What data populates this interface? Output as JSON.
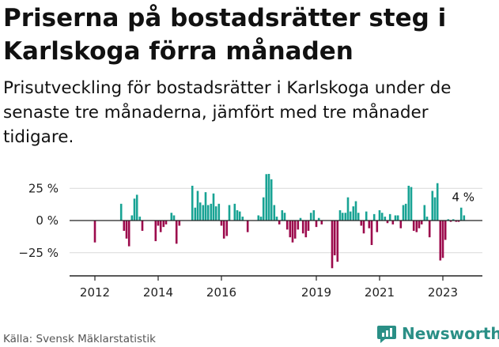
{
  "title": "Priserna på bostadsrätter steg i Karlskoga förra månaden",
  "subtitle": "Prisutveckling för bostadsrätter i Karlskoga under de senaste tre månaderna, jämfört med tre månader tidigare.",
  "source": "Källa: Svensk Mäklarstatistik",
  "brand": {
    "name": "Newsworthy",
    "icon": "newsworthy-logo-icon",
    "color": "#2a8f86"
  },
  "colors": {
    "positive": "#18a394",
    "negative": "#9c0a4c",
    "axis": "#222222",
    "grid": "#d9d9d9"
  },
  "chart_data": {
    "type": "bar",
    "title": "",
    "xlabel": "",
    "ylabel": "",
    "ylim": [
      -37,
      38
    ],
    "y_ticks": [
      25,
      0,
      -25
    ],
    "y_tick_labels": [
      "25 %",
      "0 %",
      "−25 %"
    ],
    "x_ticks": [
      2012,
      2014,
      2016,
      2019,
      2021,
      2023
    ],
    "x_tick_labels": [
      "2012",
      "2014",
      "2016",
      "2019",
      "2021",
      "2023"
    ],
    "grid": true,
    "legend": "none",
    "annotation": {
      "text": "4 %",
      "x": 2023.67,
      "y": 4
    },
    "points": [
      {
        "x": 2012.0,
        "y": -17
      },
      {
        "x": 2012.83,
        "y": 13
      },
      {
        "x": 2012.92,
        "y": -8
      },
      {
        "x": 2013.0,
        "y": -14
      },
      {
        "x": 2013.08,
        "y": -20
      },
      {
        "x": 2013.17,
        "y": 4
      },
      {
        "x": 2013.25,
        "y": 17
      },
      {
        "x": 2013.33,
        "y": 20
      },
      {
        "x": 2013.42,
        "y": 3
      },
      {
        "x": 2013.5,
        "y": -8
      },
      {
        "x": 2013.92,
        "y": -16
      },
      {
        "x": 2014.0,
        "y": -4
      },
      {
        "x": 2014.08,
        "y": -9
      },
      {
        "x": 2014.17,
        "y": -5
      },
      {
        "x": 2014.25,
        "y": -3
      },
      {
        "x": 2014.42,
        "y": 6
      },
      {
        "x": 2014.5,
        "y": 4
      },
      {
        "x": 2014.58,
        "y": -18
      },
      {
        "x": 2014.67,
        "y": -4
      },
      {
        "x": 2015.08,
        "y": 27
      },
      {
        "x": 2015.17,
        "y": 10
      },
      {
        "x": 2015.25,
        "y": 23
      },
      {
        "x": 2015.33,
        "y": 14
      },
      {
        "x": 2015.42,
        "y": 12
      },
      {
        "x": 2015.5,
        "y": 22
      },
      {
        "x": 2015.58,
        "y": 12
      },
      {
        "x": 2015.67,
        "y": 13
      },
      {
        "x": 2015.75,
        "y": 21
      },
      {
        "x": 2015.83,
        "y": 11
      },
      {
        "x": 2015.92,
        "y": 13
      },
      {
        "x": 2016.0,
        "y": -4
      },
      {
        "x": 2016.08,
        "y": -14
      },
      {
        "x": 2016.17,
        "y": -12
      },
      {
        "x": 2016.25,
        "y": 12
      },
      {
        "x": 2016.42,
        "y": 13
      },
      {
        "x": 2016.5,
        "y": 8
      },
      {
        "x": 2016.58,
        "y": 7
      },
      {
        "x": 2016.67,
        "y": 3
      },
      {
        "x": 2016.83,
        "y": -9
      },
      {
        "x": 2017.17,
        "y": 4
      },
      {
        "x": 2017.25,
        "y": 3
      },
      {
        "x": 2017.33,
        "y": 18
      },
      {
        "x": 2017.42,
        "y": 36
      },
      {
        "x": 2017.5,
        "y": 38
      },
      {
        "x": 2017.58,
        "y": 32
      },
      {
        "x": 2017.67,
        "y": 12
      },
      {
        "x": 2017.75,
        "y": 3
      },
      {
        "x": 2017.83,
        "y": -3
      },
      {
        "x": 2017.92,
        "y": 8
      },
      {
        "x": 2018.0,
        "y": 6
      },
      {
        "x": 2018.08,
        "y": -7
      },
      {
        "x": 2018.17,
        "y": -13
      },
      {
        "x": 2018.25,
        "y": -17
      },
      {
        "x": 2018.33,
        "y": -14
      },
      {
        "x": 2018.42,
        "y": -7
      },
      {
        "x": 2018.5,
        "y": 2
      },
      {
        "x": 2018.58,
        "y": -10
      },
      {
        "x": 2018.67,
        "y": -13
      },
      {
        "x": 2018.75,
        "y": -8
      },
      {
        "x": 2018.83,
        "y": 6
      },
      {
        "x": 2018.92,
        "y": 8
      },
      {
        "x": 2019.0,
        "y": -5
      },
      {
        "x": 2019.08,
        "y": 2
      },
      {
        "x": 2019.17,
        "y": -3
      },
      {
        "x": 2019.5,
        "y": -37
      },
      {
        "x": 2019.58,
        "y": -27
      },
      {
        "x": 2019.67,
        "y": -32
      },
      {
        "x": 2019.75,
        "y": 8
      },
      {
        "x": 2019.83,
        "y": 6
      },
      {
        "x": 2019.92,
        "y": 6
      },
      {
        "x": 2020.0,
        "y": 18
      },
      {
        "x": 2020.08,
        "y": 7
      },
      {
        "x": 2020.17,
        "y": 11
      },
      {
        "x": 2020.25,
        "y": 15
      },
      {
        "x": 2020.33,
        "y": 6
      },
      {
        "x": 2020.42,
        "y": -4
      },
      {
        "x": 2020.5,
        "y": -10
      },
      {
        "x": 2020.58,
        "y": 7
      },
      {
        "x": 2020.67,
        "y": -6
      },
      {
        "x": 2020.75,
        "y": -19
      },
      {
        "x": 2020.83,
        "y": 5
      },
      {
        "x": 2020.92,
        "y": -9
      },
      {
        "x": 2021.0,
        "y": 8
      },
      {
        "x": 2021.08,
        "y": 6
      },
      {
        "x": 2021.17,
        "y": 3
      },
      {
        "x": 2021.25,
        "y": -2
      },
      {
        "x": 2021.33,
        "y": 5
      },
      {
        "x": 2021.42,
        "y": -3
      },
      {
        "x": 2021.5,
        "y": 4
      },
      {
        "x": 2021.58,
        "y": 4
      },
      {
        "x": 2021.67,
        "y": -6
      },
      {
        "x": 2021.75,
        "y": 12
      },
      {
        "x": 2021.83,
        "y": 13
      },
      {
        "x": 2021.92,
        "y": 27
      },
      {
        "x": 2022.0,
        "y": 26
      },
      {
        "x": 2022.08,
        "y": -8
      },
      {
        "x": 2022.17,
        "y": -9
      },
      {
        "x": 2022.25,
        "y": -6
      },
      {
        "x": 2022.33,
        "y": -3
      },
      {
        "x": 2022.42,
        "y": 12
      },
      {
        "x": 2022.5,
        "y": 3
      },
      {
        "x": 2022.58,
        "y": -13
      },
      {
        "x": 2022.67,
        "y": 23
      },
      {
        "x": 2022.75,
        "y": 18
      },
      {
        "x": 2022.83,
        "y": 29
      },
      {
        "x": 2022.92,
        "y": -31
      },
      {
        "x": 2023.0,
        "y": -29
      },
      {
        "x": 2023.08,
        "y": -15
      },
      {
        "x": 2023.17,
        "y": 1
      },
      {
        "x": 2023.25,
        "y": -1
      },
      {
        "x": 2023.33,
        "y": 1
      },
      {
        "x": 2023.42,
        "y": -1
      },
      {
        "x": 2023.5,
        "y": -1
      },
      {
        "x": 2023.58,
        "y": 10
      },
      {
        "x": 2023.67,
        "y": 4
      }
    ]
  }
}
